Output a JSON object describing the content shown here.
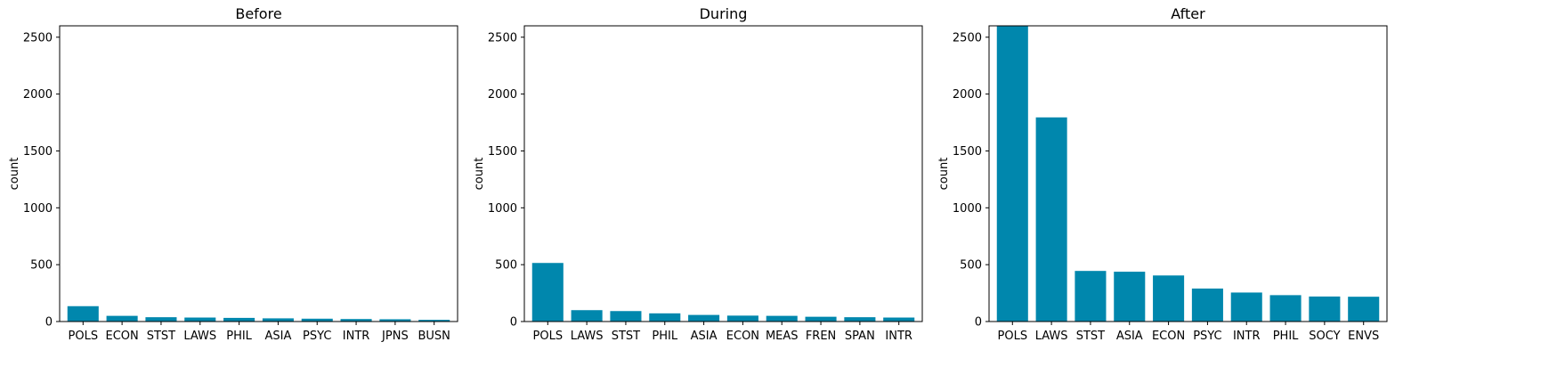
{
  "chart_data": [
    {
      "type": "bar",
      "title": "Before",
      "ylabel": "count",
      "ylim": [
        0,
        2600
      ],
      "yticks": [
        0,
        500,
        1000,
        1500,
        2000,
        2500
      ],
      "categories": [
        "POLS",
        "ECON",
        "STST",
        "LAWS",
        "PHIL",
        "ASIA",
        "PSYC",
        "INTR",
        "JPNS",
        "BUSN"
      ],
      "values": [
        135,
        50,
        38,
        35,
        32,
        28,
        25,
        22,
        20,
        15
      ],
      "color": "#0087ad"
    },
    {
      "type": "bar",
      "title": "During",
      "ylabel": "count",
      "ylim": [
        0,
        2600
      ],
      "yticks": [
        0,
        500,
        1000,
        1500,
        2000,
        2500
      ],
      "categories": [
        "POLS",
        "LAWS",
        "STST",
        "PHIL",
        "ASIA",
        "ECON",
        "MEAS",
        "FREN",
        "SPAN",
        "INTR"
      ],
      "values": [
        515,
        100,
        92,
        72,
        58,
        52,
        50,
        42,
        38,
        35
      ],
      "color": "#0087ad"
    },
    {
      "type": "bar",
      "title": "After",
      "ylabel": "count",
      "ylim": [
        0,
        2600
      ],
      "yticks": [
        0,
        500,
        1000,
        1500,
        2000,
        2500
      ],
      "categories": [
        "POLS",
        "LAWS",
        "STST",
        "ASIA",
        "ECON",
        "PSYC",
        "INTR",
        "PHIL",
        "SOCY",
        "ENVS"
      ],
      "values": [
        2600,
        1795,
        445,
        438,
        405,
        290,
        255,
        232,
        220,
        218
      ],
      "color": "#0087ad"
    }
  ]
}
